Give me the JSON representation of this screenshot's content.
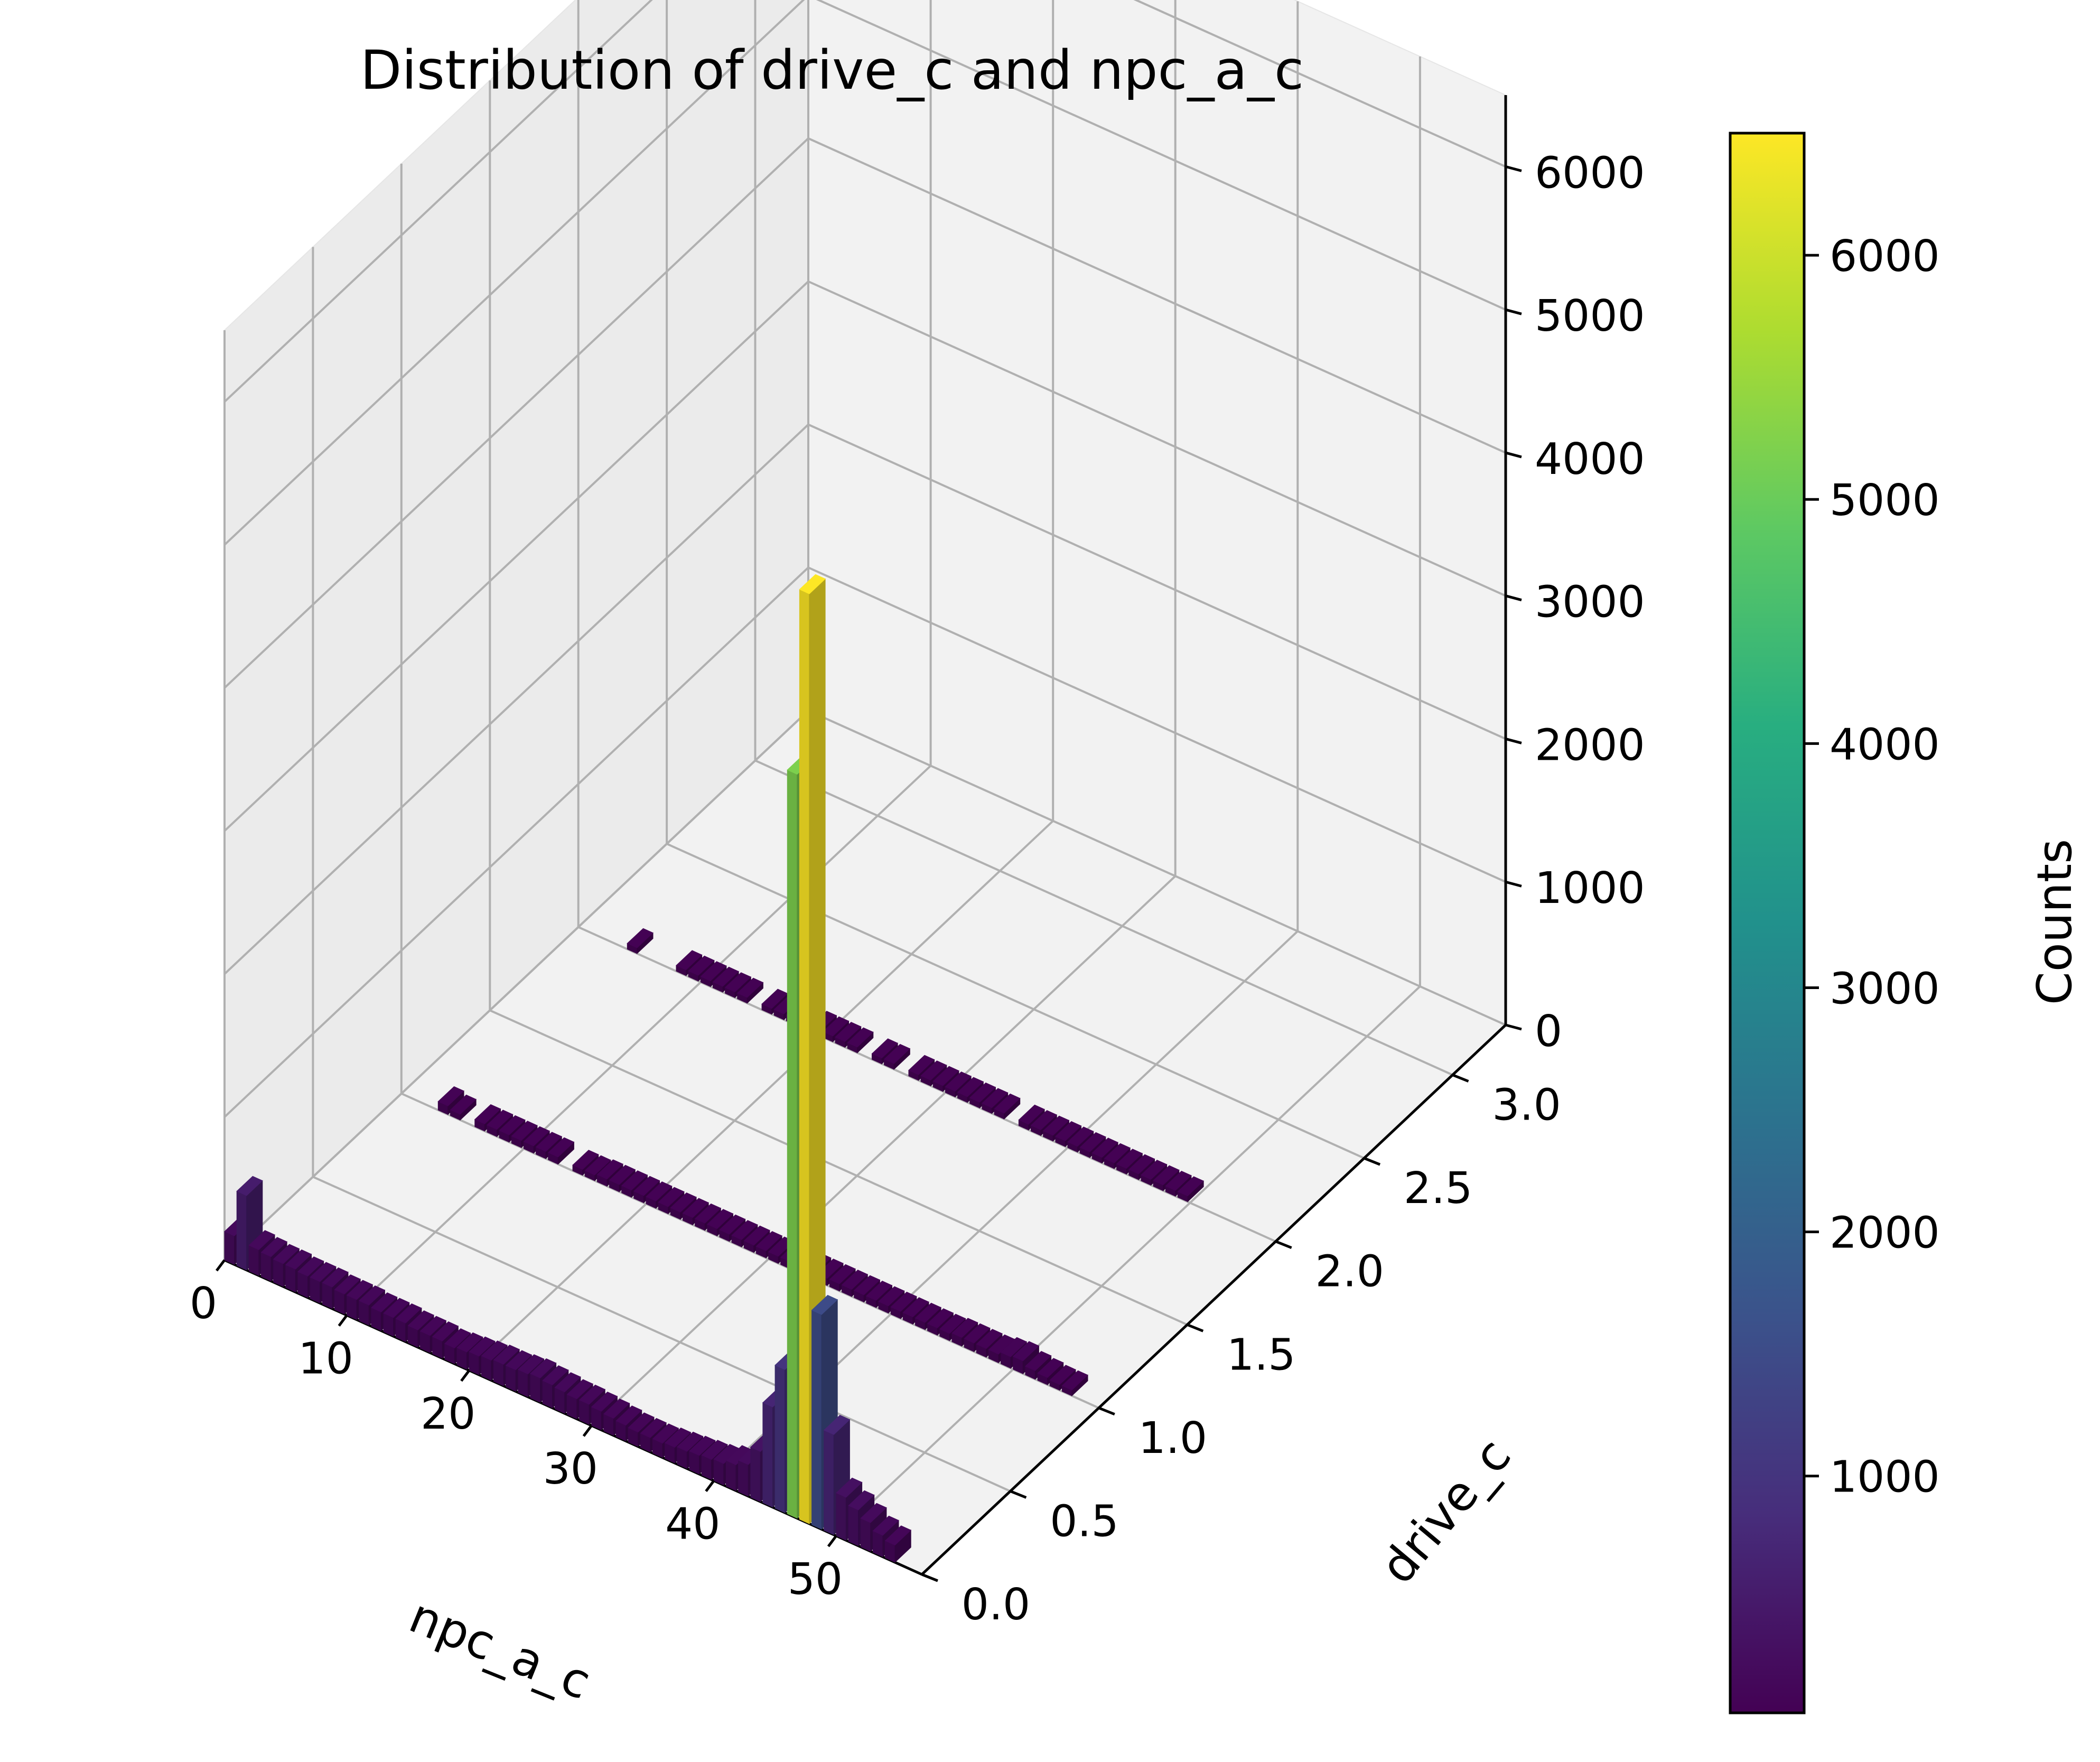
{
  "chart_data": {
    "type": "bar3d",
    "title": "Distribution of drive_c and npc_a_c",
    "xlabel": "npc_a_c",
    "ylabel": "drive_c",
    "colorbar_label": "Counts",
    "colormap": "viridis",
    "x_ticks": [
      "0",
      "10",
      "20",
      "30",
      "40",
      "50"
    ],
    "y_ticks": [
      "0.0",
      "0.5",
      "1.0",
      "1.5",
      "2.0",
      "2.5",
      "3.0"
    ],
    "z_ticks": [
      "0",
      "1000",
      "2000",
      "3000",
      "4000",
      "5000",
      "6000"
    ],
    "colorbar_ticks": [
      "1000",
      "2000",
      "3000",
      "4000",
      "5000",
      "6000"
    ],
    "xlim": [
      0,
      57
    ],
    "ylim": [
      0,
      3.3
    ],
    "zlim": [
      0,
      6500
    ],
    "color_range": [
      30,
      6500
    ],
    "grid": true,
    "series": [
      {
        "drive_c": 0,
        "npc_a_c": [
          0,
          1,
          2,
          3,
          4,
          5,
          6,
          7,
          8,
          9,
          10,
          11,
          12,
          13,
          14,
          15,
          16,
          17,
          18,
          19,
          20,
          21,
          22,
          23,
          24,
          25,
          26,
          27,
          28,
          29,
          30,
          31,
          32,
          33,
          34,
          35,
          36,
          37,
          38,
          39,
          40,
          41,
          42,
          43,
          44,
          45,
          46,
          47,
          48,
          49,
          50,
          51,
          52,
          53,
          54
        ],
        "counts": [
          200,
          520,
          180,
          170,
          160,
          160,
          150,
          150,
          150,
          140,
          140,
          140,
          130,
          130,
          130,
          120,
          120,
          120,
          110,
          120,
          130,
          140,
          150,
          150,
          160,
          170,
          160,
          150,
          140,
          140,
          130,
          120,
          110,
          100,
          100,
          100,
          110,
          120,
          130,
          140,
          150,
          180,
          220,
          350,
          700,
          1000,
          5200,
          6500,
          1500,
          700,
          300,
          250,
          200,
          150,
          120
        ]
      },
      {
        "drive_c": 1,
        "npc_a_c": [
          3,
          4,
          6,
          7,
          8,
          9,
          10,
          11,
          12,
          14,
          15,
          16,
          17,
          18,
          19,
          20,
          21,
          22,
          23,
          24,
          25,
          26,
          27,
          28,
          29,
          30,
          31,
          32,
          33,
          34,
          35,
          36,
          37,
          38,
          39,
          40,
          41,
          42,
          43,
          44,
          45,
          46,
          47,
          48,
          49,
          50,
          51,
          52,
          53,
          54
        ],
        "counts": [
          60,
          40,
          50,
          50,
          50,
          50,
          50,
          50,
          50,
          40,
          40,
          50,
          50,
          50,
          50,
          50,
          50,
          50,
          50,
          50,
          50,
          50,
          50,
          50,
          50,
          50,
          50,
          50,
          50,
          50,
          50,
          50,
          50,
          50,
          50,
          50,
          50,
          50,
          50,
          50,
          60,
          60,
          60,
          60,
          80,
          90,
          60,
          50,
          40,
          40
        ]
      },
      {
        "drive_c": 2,
        "npc_a_c": [
          4,
          8,
          9,
          10,
          11,
          12,
          13,
          15,
          16,
          17,
          18,
          19,
          20,
          21,
          22,
          24,
          25,
          27,
          28,
          29,
          30,
          31,
          32,
          33,
          34,
          36,
          37,
          38,
          39,
          40,
          41,
          42,
          43,
          44,
          45,
          46,
          47,
          48,
          49
        ],
        "counts": [
          40,
          40,
          40,
          40,
          40,
          40,
          40,
          40,
          40,
          40,
          40,
          40,
          40,
          40,
          40,
          40,
          40,
          40,
          40,
          40,
          40,
          40,
          40,
          40,
          40,
          40,
          40,
          40,
          40,
          40,
          40,
          40,
          40,
          40,
          40,
          40,
          40,
          40,
          40
        ]
      }
    ]
  }
}
